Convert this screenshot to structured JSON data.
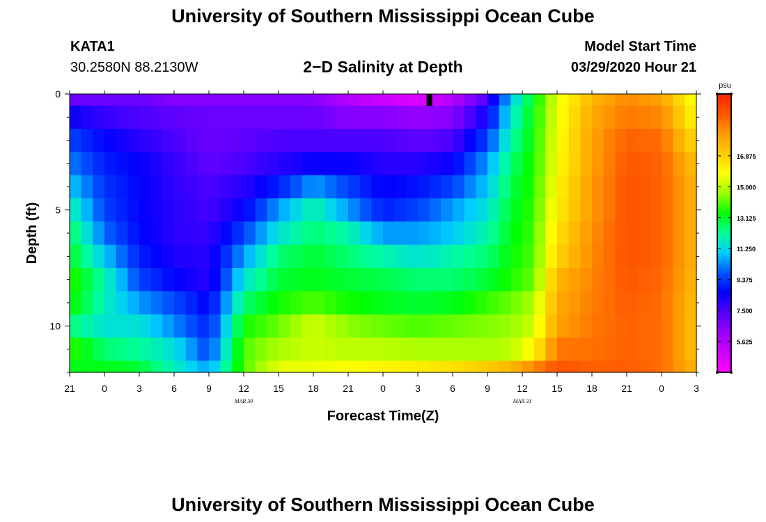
{
  "page": {
    "title": "University of Southern Mississippi Ocean Cube",
    "footer_title": "University of Southern Mississippi Ocean Cube",
    "station_id": "KATA1",
    "station_coords": "30.2580N 88.2130W",
    "subtitle": "2−D Salinity at Depth",
    "model_start_label": "Model Start Time",
    "model_start_value": "03/29/2020 Hour 21"
  },
  "chart_data": {
    "type": "heatmap",
    "title": "2−D Salinity at Depth",
    "xlabel": "Forecast Time(Z)",
    "ylabel": "Depth (ft)",
    "x_range_hours": [
      0,
      54
    ],
    "x_ticks": [
      {
        "hour": 0,
        "label": "21"
      },
      {
        "hour": 3,
        "label": "0"
      },
      {
        "hour": 6,
        "label": "3"
      },
      {
        "hour": 9,
        "label": "6"
      },
      {
        "hour": 12,
        "label": "9"
      },
      {
        "hour": 15,
        "label": "12"
      },
      {
        "hour": 18,
        "label": "15"
      },
      {
        "hour": 21,
        "label": "18"
      },
      {
        "hour": 24,
        "label": "21"
      },
      {
        "hour": 27,
        "label": "0"
      },
      {
        "hour": 30,
        "label": "3"
      },
      {
        "hour": 33,
        "label": "6"
      },
      {
        "hour": 36,
        "label": "9"
      },
      {
        "hour": 39,
        "label": "12"
      },
      {
        "hour": 42,
        "label": "15"
      },
      {
        "hour": 45,
        "label": "18"
      },
      {
        "hour": 48,
        "label": "21"
      },
      {
        "hour": 51,
        "label": "0"
      },
      {
        "hour": 54,
        "label": "3"
      }
    ],
    "date_labels": [
      {
        "hour": 15,
        "label": "MAR  30"
      },
      {
        "hour": 39,
        "label": "MAR  31"
      }
    ],
    "y_range_ft": [
      0,
      12
    ],
    "y_ticks": [
      0,
      5,
      10
    ],
    "depth_levels_ft": [
      0,
      1,
      2,
      3,
      4,
      5,
      6,
      7,
      8,
      9,
      10,
      11,
      12
    ],
    "marker_hour": 31,
    "colorbar": {
      "unit": "psu",
      "min": 3.75,
      "max": 20.625,
      "tick_values": [
        5.625,
        7.5,
        9.375,
        11.25,
        13.125,
        15.0,
        16.875
      ],
      "tick_labels": [
        "5.625",
        "7.500",
        "9.375",
        "11.250",
        "13.125",
        "15.000",
        "16.875"
      ],
      "colors": [
        "#ff00ff",
        "#cc00ff",
        "#9900ff",
        "#5500ff",
        "#0000ff",
        "#0055ff",
        "#00ccff",
        "#00ff99",
        "#00ff00",
        "#99ff00",
        "#ffff00",
        "#ffcc00",
        "#ff9900",
        "#ff5500",
        "#ff2200"
      ]
    },
    "salinity_profiles": [
      {
        "hour": 0,
        "values": [
          7.0,
          8.5,
          9.5,
          10.2,
          11.0,
          12.0,
          12.8,
          13.2,
          13.8,
          13.5,
          12.5,
          13.8,
          13.2
        ]
      },
      {
        "hour": 3,
        "values": [
          7.0,
          7.8,
          8.6,
          9.0,
          9.3,
          9.5,
          10.0,
          11.0,
          12.0,
          11.8,
          11.5,
          12.5,
          13.2
        ]
      },
      {
        "hour": 6,
        "values": [
          7.0,
          7.5,
          8.0,
          8.5,
          8.6,
          8.6,
          8.7,
          9.0,
          9.5,
          10.5,
          11.5,
          12.2,
          13.0
        ]
      },
      {
        "hour": 9,
        "values": [
          6.5,
          7.2,
          7.5,
          7.8,
          7.9,
          8.0,
          8.0,
          8.2,
          8.6,
          9.6,
          10.3,
          11.4,
          11.8
        ]
      },
      {
        "hour": 12,
        "values": [
          6.5,
          7.0,
          7.0,
          7.2,
          7.5,
          7.6,
          7.8,
          8.0,
          8.0,
          8.5,
          9.0,
          9.5,
          10.5
        ]
      },
      {
        "hour": 15,
        "values": [
          6.5,
          7.0,
          7.2,
          7.5,
          8.0,
          8.5,
          9.5,
          10.5,
          11.5,
          12.5,
          13.5,
          14.0,
          14.0
        ]
      },
      {
        "hour": 18,
        "values": [
          6.5,
          7.0,
          7.5,
          8.0,
          9.0,
          10.5,
          11.5,
          12.5,
          13.0,
          13.5,
          14.2,
          14.8,
          15.5
        ]
      },
      {
        "hour": 21,
        "values": [
          6.5,
          7.0,
          7.5,
          8.5,
          10.5,
          12.0,
          12.5,
          13.0,
          13.2,
          14.0,
          15.2,
          15.2,
          15.6
        ]
      },
      {
        "hour": 24,
        "values": [
          5.5,
          6.5,
          7.5,
          8.5,
          9.5,
          10.5,
          12.0,
          12.5,
          13.0,
          13.5,
          14.5,
          15.0,
          15.8
        ]
      },
      {
        "hour": 27,
        "values": [
          5.0,
          6.5,
          7.5,
          8.0,
          8.5,
          9.0,
          10.5,
          12.0,
          12.8,
          13.2,
          14.2,
          15.0,
          16.0
        ]
      },
      {
        "hour": 30,
        "values": [
          4.5,
          6.2,
          7.2,
          8.0,
          8.8,
          9.5,
          10.5,
          11.5,
          12.5,
          13.0,
          14.0,
          14.8,
          16.2
        ]
      },
      {
        "hour": 33,
        "values": [
          5.5,
          6.5,
          7.5,
          8.5,
          9.5,
          10.5,
          11.0,
          12.0,
          12.5,
          13.2,
          14.2,
          14.8,
          16.5
        ]
      },
      {
        "hour": 36,
        "values": [
          7.5,
          8.5,
          9.5,
          10.5,
          11.0,
          11.5,
          12.0,
          12.5,
          13.0,
          13.8,
          14.4,
          14.8,
          17.0
        ]
      },
      {
        "hour": 38,
        "values": [
          11.0,
          11.5,
          12.0,
          12.5,
          12.8,
          13.0,
          13.2,
          13.4,
          13.6,
          14.2,
          14.6,
          15.0,
          17.5
        ]
      },
      {
        "hour": 40,
        "values": [
          13.2,
          13.4,
          13.5,
          13.6,
          13.7,
          13.8,
          13.9,
          14.0,
          14.2,
          14.8,
          15.2,
          16.0,
          18.5
        ]
      },
      {
        "hour": 42,
        "values": [
          15.5,
          15.6,
          15.7,
          15.8,
          16.0,
          16.2,
          16.5,
          16.8,
          17.5,
          17.8,
          18.0,
          18.8,
          19.5
        ]
      },
      {
        "hour": 45,
        "values": [
          17.5,
          17.8,
          18.0,
          18.0,
          18.2,
          18.2,
          18.4,
          18.5,
          18.6,
          18.7,
          18.8,
          18.9,
          19.2
        ]
      },
      {
        "hour": 48,
        "values": [
          18.5,
          18.8,
          19.2,
          19.4,
          19.5,
          19.5,
          19.5,
          19.5,
          19.4,
          19.3,
          19.2,
          19.2,
          19.3
        ]
      },
      {
        "hour": 51,
        "values": [
          18.0,
          18.5,
          19.0,
          19.2,
          19.2,
          19.2,
          19.2,
          19.2,
          19.1,
          19.0,
          19.0,
          19.0,
          19.0
        ]
      },
      {
        "hour": 54,
        "values": [
          15.5,
          15.8,
          16.5,
          17.2,
          17.5,
          17.5,
          17.5,
          17.5,
          17.4,
          17.3,
          17.2,
          17.2,
          17.5
        ]
      }
    ]
  }
}
